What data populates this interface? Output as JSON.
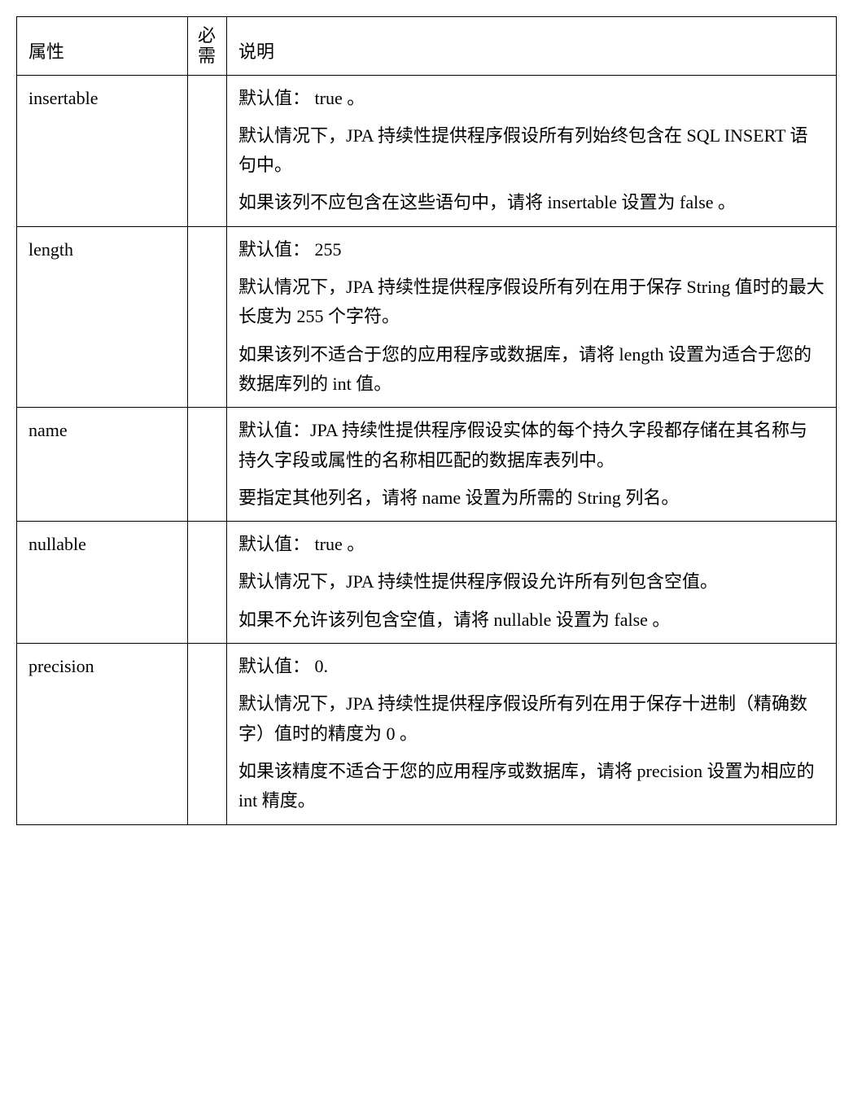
{
  "table": {
    "headers": {
      "attribute": "属性",
      "required": "必需",
      "description": "说明"
    },
    "rows": [
      {
        "attribute": "insertable",
        "required": "",
        "paragraphs": [
          "默认值： true 。",
          "默认情况下，JPA 持续性提供程序假设所有列始终包含在 SQL INSERT 语句中。",
          "如果该列不应包含在这些语句中，请将 insertable 设置为 false 。"
        ]
      },
      {
        "attribute": "length",
        "required": "",
        "paragraphs": [
          "默认值： 255",
          "默认情况下，JPA 持续性提供程序假设所有列在用于保存 String 值时的最大长度为 255 个字符。",
          "如果该列不适合于您的应用程序或数据库，请将 length 设置为适合于您的数据库列的 int 值。"
        ]
      },
      {
        "attribute": "name",
        "required": "",
        "paragraphs": [
          "默认值：JPA 持续性提供程序假设实体的每个持久字段都存储在其名称与持久字段或属性的名称相匹配的数据库表列中。",
          "要指定其他列名，请将 name 设置为所需的 String 列名。"
        ]
      },
      {
        "attribute": "nullable",
        "required": "",
        "paragraphs": [
          "默认值： true 。",
          "默认情况下，JPA 持续性提供程序假设允许所有列包含空值。",
          "如果不允许该列包含空值，请将 nullable 设置为 false 。"
        ]
      },
      {
        "attribute": "precision",
        "required": "",
        "paragraphs": [
          "默认值： 0.",
          "默认情况下，JPA 持续性提供程序假设所有列在用于保存十进制（精确数字）值时的精度为 0 。",
          "如果该精度不适合于您的应用程序或数据库，请将 precision 设置为相应的 int 精度。"
        ]
      }
    ]
  }
}
